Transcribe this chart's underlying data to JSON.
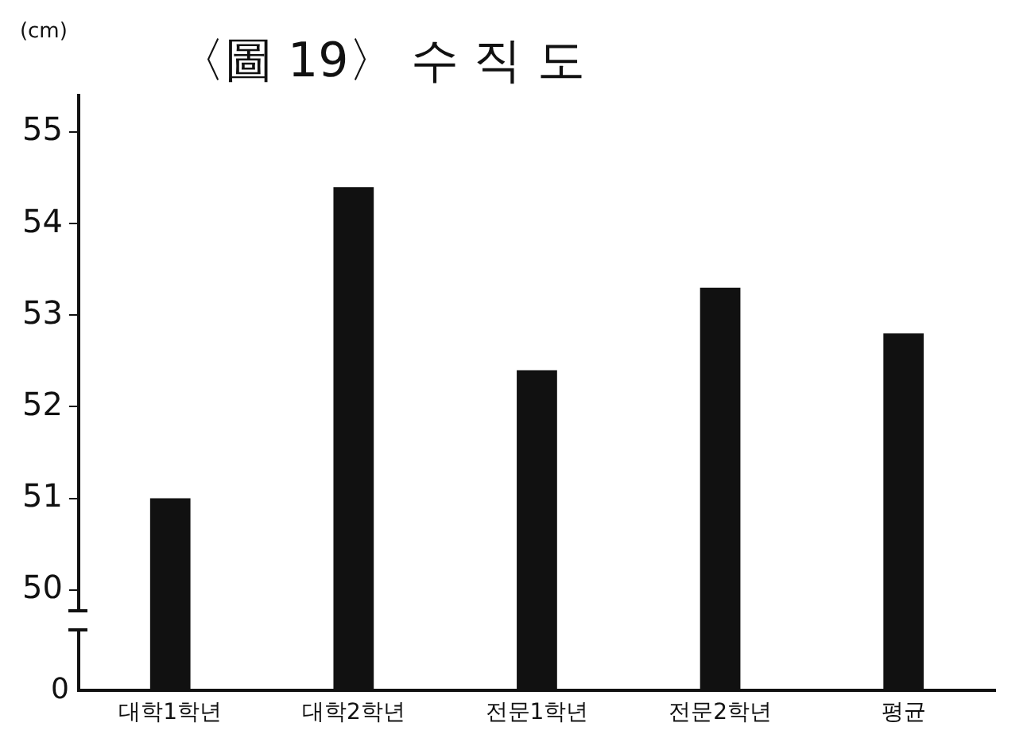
{
  "chart_data": {
    "type": "bar",
    "title": "〈圖 19〉 수 직 도",
    "ylabel": "(cm)",
    "categories": [
      "대학1학년",
      "대학2학년",
      "전문1학년",
      "전문2학년",
      "평균"
    ],
    "values": [
      51.0,
      54.4,
      52.4,
      53.3,
      52.8
    ],
    "color": "#111111",
    "ylim": [
      48.9,
      55.4
    ],
    "yticks": [
      50,
      51,
      52,
      53,
      54,
      55
    ],
    "grid": false,
    "legend": false,
    "annotations": [
      "0"
    ]
  }
}
